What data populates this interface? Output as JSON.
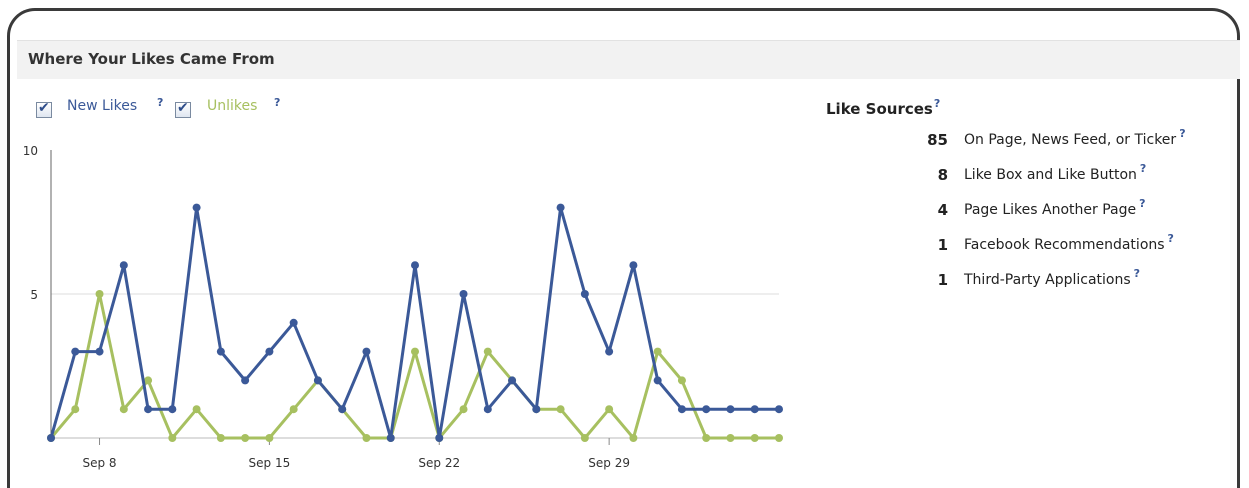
{
  "panel": {
    "title": "Where Your Likes Came From"
  },
  "legend": {
    "new_likes_label": "New Likes",
    "unlikes_label": "Unlikes",
    "help_glyph": "?"
  },
  "like_sources": {
    "title": "Like Sources",
    "items": [
      {
        "count": "85",
        "label": "On Page, News Feed, or Ticker"
      },
      {
        "count": "8",
        "label": "Like Box and Like Button"
      },
      {
        "count": "4",
        "label": "Page Likes Another Page"
      },
      {
        "count": "1",
        "label": "Facebook Recommendations"
      },
      {
        "count": "1",
        "label": "Third-Party Applications"
      }
    ]
  },
  "colors": {
    "new_likes": "#3b5998",
    "unlikes": "#a7c060",
    "gridline": "#dddddd",
    "help": "#3b5998"
  },
  "chart_data": {
    "type": "line",
    "x_start": "Sep 6",
    "x": [
      "Sep 6",
      "Sep 7",
      "Sep 8",
      "Sep 9",
      "Sep 10",
      "Sep 11",
      "Sep 12",
      "Sep 13",
      "Sep 14",
      "Sep 15",
      "Sep 16",
      "Sep 17",
      "Sep 18",
      "Sep 19",
      "Sep 20",
      "Sep 21",
      "Sep 22",
      "Sep 23",
      "Sep 24",
      "Sep 25",
      "Sep 26",
      "Sep 27",
      "Sep 28",
      "Sep 29",
      "Sep 30",
      "Oct 1",
      "Oct 2",
      "Oct 3",
      "Oct 4",
      "Oct 5",
      "Oct 6"
    ],
    "x_ticks": [
      "Sep 8",
      "Sep 15",
      "Sep 22",
      "Sep 29"
    ],
    "y_ticks": [
      5,
      10
    ],
    "ylim": [
      0,
      10
    ],
    "grid": "horizontal",
    "series": [
      {
        "name": "New Likes",
        "values": [
          0,
          3,
          3,
          6,
          1,
          1,
          8,
          3,
          2,
          3,
          4,
          2,
          1,
          3,
          0,
          6,
          0,
          5,
          1,
          2,
          1,
          8,
          5,
          3,
          6,
          2,
          1,
          1,
          1,
          1,
          1
        ]
      },
      {
        "name": "Unlikes",
        "values": [
          0,
          1,
          5,
          1,
          2,
          0,
          1,
          0,
          0,
          0,
          1,
          2,
          1,
          0,
          0,
          3,
          0,
          1,
          3,
          2,
          1,
          1,
          0,
          1,
          0,
          3,
          2,
          0,
          0,
          0,
          0
        ]
      }
    ]
  }
}
